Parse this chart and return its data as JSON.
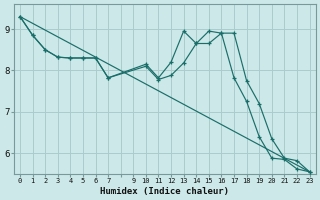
{
  "xlabel": "Humidex (Indice chaleur)",
  "bg_color": "#cce8e8",
  "grid_color": "#aacccc",
  "line_color": "#1a6e6a",
  "xlim": [
    -0.5,
    23.5
  ],
  "ylim": [
    5.5,
    9.6
  ],
  "yticks": [
    6,
    7,
    8,
    9
  ],
  "line1_x": [
    0,
    1,
    2,
    3,
    4,
    5,
    6,
    7,
    10,
    11,
    12,
    13,
    14,
    15,
    16,
    17,
    18,
    19,
    20,
    21,
    22,
    23
  ],
  "line1_y": [
    9.3,
    8.85,
    8.5,
    8.32,
    8.3,
    8.3,
    8.3,
    7.82,
    8.15,
    7.82,
    8.2,
    8.95,
    8.65,
    8.95,
    8.9,
    7.82,
    7.25,
    6.4,
    5.88,
    5.85,
    5.62,
    5.55
  ],
  "line2_x": [
    0,
    1,
    2,
    3,
    4,
    5,
    6,
    7,
    10,
    11,
    12,
    13,
    14,
    15,
    16,
    17,
    18,
    19,
    20,
    21,
    22,
    23
  ],
  "line2_y": [
    9.3,
    8.85,
    8.5,
    8.32,
    8.3,
    8.3,
    8.3,
    7.82,
    8.1,
    7.78,
    7.88,
    8.18,
    8.65,
    8.65,
    8.9,
    8.9,
    7.75,
    7.2,
    6.35,
    5.88,
    5.82,
    5.55
  ],
  "line3_x": [
    0,
    23
  ],
  "line3_y": [
    9.3,
    5.55
  ]
}
